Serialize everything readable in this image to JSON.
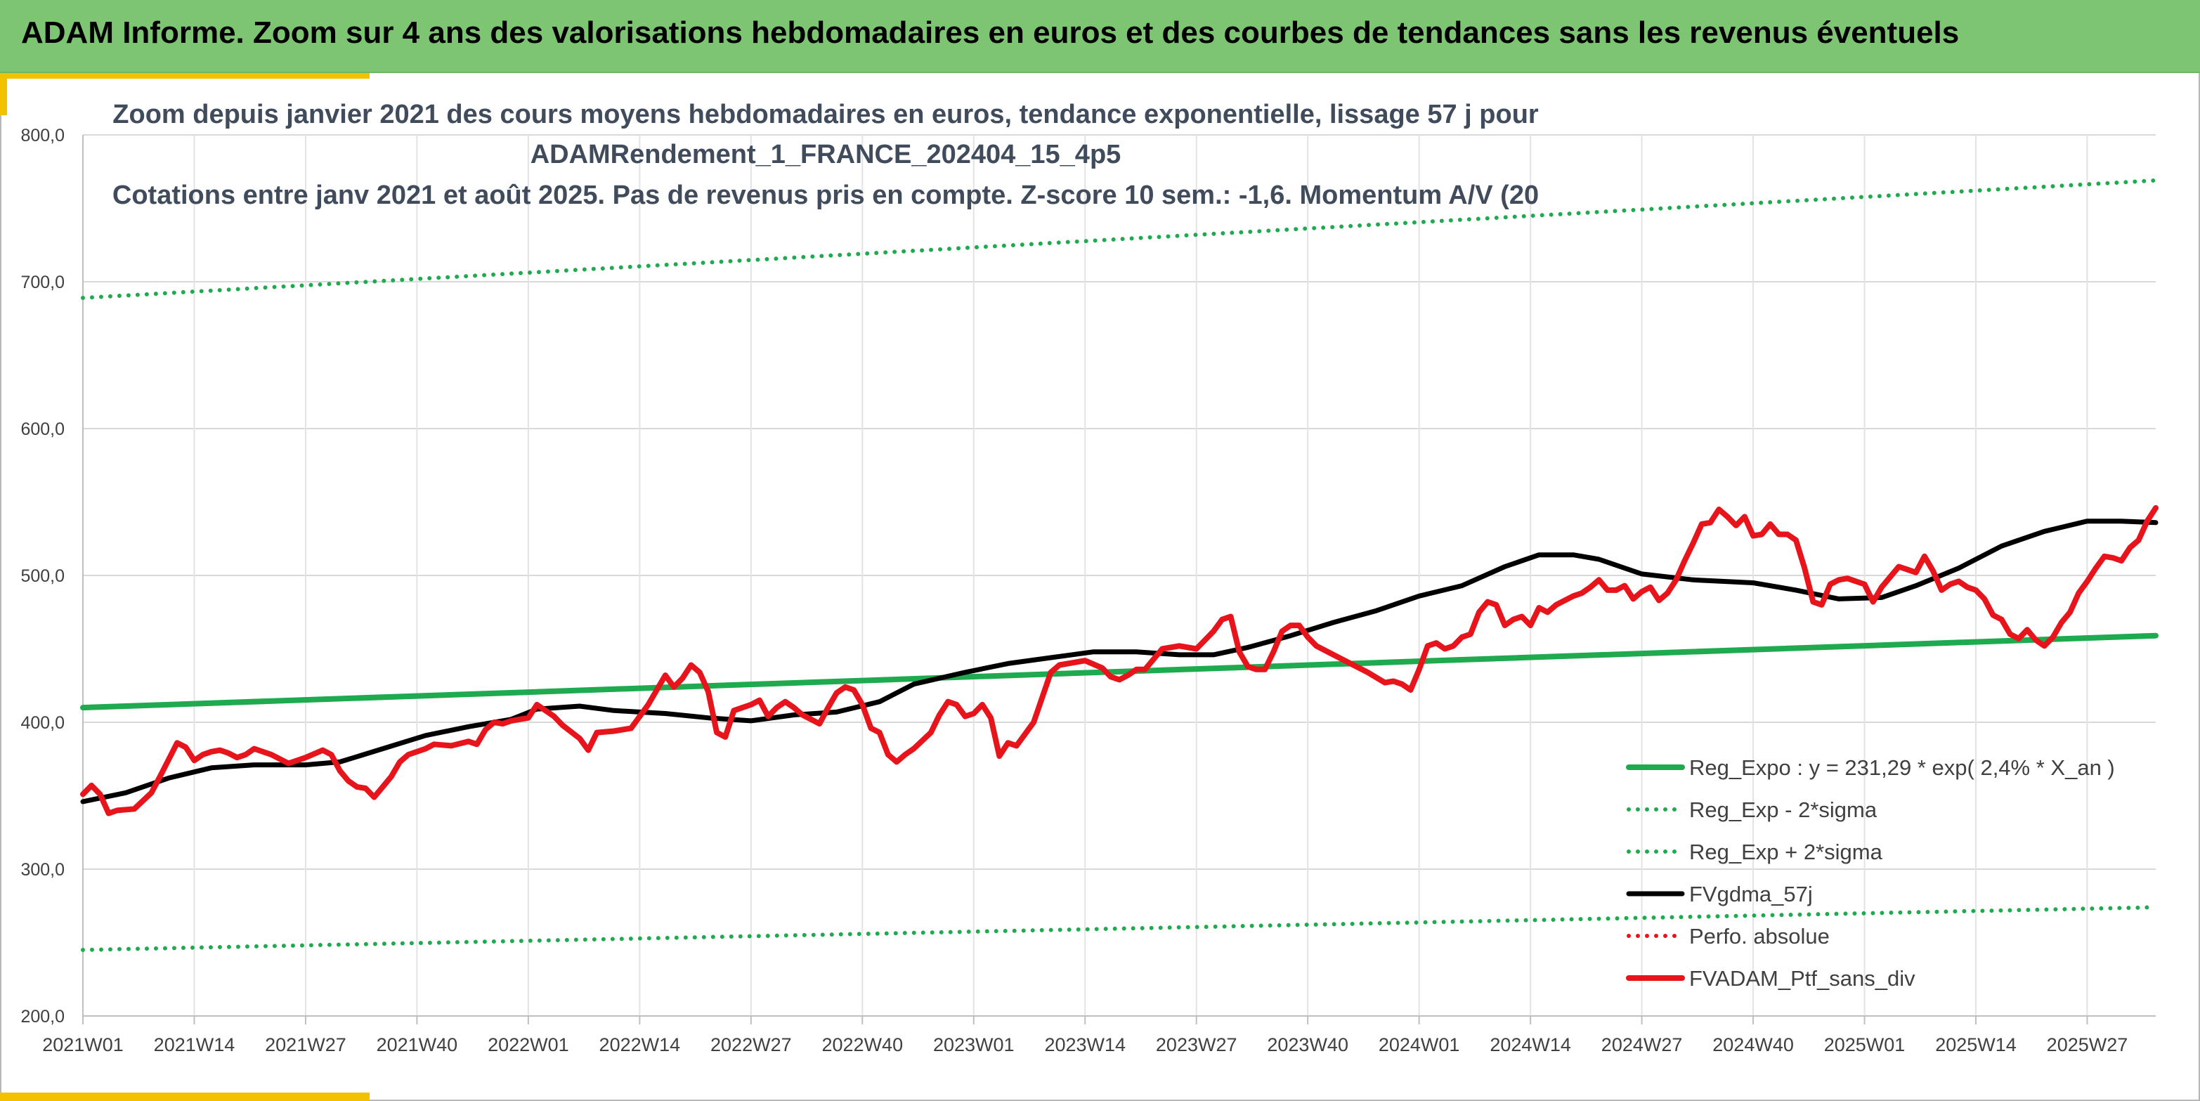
{
  "banner": {
    "title": "ADAM Informe. Zoom sur 4 ans des valorisations hebdomadaires en euros et des courbes de tendances sans les revenus éventuels"
  },
  "colors": {
    "banner": "#7dc473",
    "accent": "#f2c200",
    "trend_green": "#1faa50",
    "portfolio_red": "#e8141b",
    "moving_average": "#000000",
    "title_text": "#404c5c"
  },
  "chart_data": {
    "type": "line",
    "title_lines": [
      "Zoom depuis janvier 2021 des cours moyens hebdomadaires en euros, tendance exponentielle, lissage 57 j pour",
      "ADAMRendement_1_FRANCE_202404_15_4p5",
      "Cotations entre janv 2021 et août 2025. Pas de revenus pris en compte. Z-score 10 sem.: -1,6. Momentum A/V (20"
    ],
    "ylim": [
      200,
      800
    ],
    "y_ticks": [
      "200,0",
      "300,0",
      "400,0",
      "500,0",
      "600,0",
      "700,0",
      "800,0"
    ],
    "x_tick_labels": [
      "2021W01",
      "2021W14",
      "2021W27",
      "2021W40",
      "2022W01",
      "2022W14",
      "2022W27",
      "2022W40",
      "2023W01",
      "2023W14",
      "2023W27",
      "2023W40",
      "2024W01",
      "2024W14",
      "2024W27",
      "2024W40",
      "2025W01",
      "2025W14",
      "2025W27"
    ],
    "x_tick_weeks": [
      0,
      13,
      26,
      39,
      52,
      65,
      78,
      91,
      104,
      117,
      130,
      143,
      156,
      169,
      182,
      195,
      208,
      221,
      234
    ],
    "x_range_weeks": [
      0,
      242
    ],
    "grid": true,
    "legend_position": "bottom-right",
    "series": [
      {
        "name": "Reg_Expo : y = 231,29 * exp( 2,4% *  X_an )",
        "style": "solid-thick",
        "color": "#1faa50",
        "points": [
          [
            0,
            410
          ],
          [
            242,
            459
          ]
        ]
      },
      {
        "name": "Reg_Exp - 2*sigma",
        "style": "dotted",
        "color": "#1faa50",
        "points": [
          [
            0,
            245
          ],
          [
            242,
            274
          ]
        ]
      },
      {
        "name": "Reg_Exp + 2*sigma",
        "style": "dotted",
        "color": "#1faa50",
        "points": [
          [
            0,
            689
          ],
          [
            242,
            769
          ]
        ]
      },
      {
        "name": "FVgdma_57j",
        "style": "solid",
        "color": "#000000",
        "points": [
          [
            0,
            346
          ],
          [
            5,
            352
          ],
          [
            10,
            362
          ],
          [
            15,
            369
          ],
          [
            20,
            371
          ],
          [
            26,
            371
          ],
          [
            30,
            373
          ],
          [
            35,
            382
          ],
          [
            40,
            391
          ],
          [
            45,
            397
          ],
          [
            50,
            402
          ],
          [
            53,
            409
          ],
          [
            58,
            411
          ],
          [
            62,
            408
          ],
          [
            68,
            406
          ],
          [
            73,
            403
          ],
          [
            78,
            401
          ],
          [
            83,
            405
          ],
          [
            88,
            407
          ],
          [
            93,
            414
          ],
          [
            97,
            426
          ],
          [
            103,
            434
          ],
          [
            108,
            440
          ],
          [
            113,
            444
          ],
          [
            118,
            448
          ],
          [
            123,
            448
          ],
          [
            128,
            446
          ],
          [
            132,
            446
          ],
          [
            136,
            451
          ],
          [
            141,
            459
          ],
          [
            146,
            468
          ],
          [
            151,
            476
          ],
          [
            156,
            486
          ],
          [
            161,
            493
          ],
          [
            166,
            506
          ],
          [
            170,
            514
          ],
          [
            174,
            514
          ],
          [
            177,
            511
          ],
          [
            182,
            501
          ],
          [
            188,
            497
          ],
          [
            195,
            495
          ],
          [
            200,
            490
          ],
          [
            205,
            484
          ],
          [
            210,
            485
          ],
          [
            214,
            493
          ],
          [
            219,
            505
          ],
          [
            224,
            520
          ],
          [
            229,
            530
          ],
          [
            234,
            537
          ],
          [
            238,
            537
          ],
          [
            242,
            536
          ]
        ]
      },
      {
        "name": "Perfo. absolue",
        "style": "dotted",
        "color": "#e8141b",
        "points": []
      },
      {
        "name": "FVADAM_Ptf_sans_div",
        "style": "solid-thick",
        "color": "#e8141b",
        "points": [
          [
            0,
            351
          ],
          [
            1,
            357
          ],
          [
            2,
            351
          ],
          [
            3,
            338
          ],
          [
            4,
            340
          ],
          [
            6,
            341
          ],
          [
            8,
            352
          ],
          [
            9,
            363
          ],
          [
            11,
            386
          ],
          [
            12,
            383
          ],
          [
            13,
            374
          ],
          [
            14,
            378
          ],
          [
            15,
            380
          ],
          [
            16,
            381
          ],
          [
            17,
            379
          ],
          [
            18,
            376
          ],
          [
            19,
            378
          ],
          [
            20,
            382
          ],
          [
            22,
            378
          ],
          [
            24,
            372
          ],
          [
            26,
            376
          ],
          [
            28,
            381
          ],
          [
            29,
            378
          ],
          [
            30,
            367
          ],
          [
            31,
            360
          ],
          [
            32,
            356
          ],
          [
            33,
            355
          ],
          [
            34,
            349
          ],
          [
            36,
            363
          ],
          [
            37,
            373
          ],
          [
            38,
            378
          ],
          [
            40,
            382
          ],
          [
            41,
            385
          ],
          [
            43,
            384
          ],
          [
            45,
            387
          ],
          [
            46,
            385
          ],
          [
            47,
            395
          ],
          [
            48,
            400
          ],
          [
            49,
            399
          ],
          [
            50,
            401
          ],
          [
            52,
            403
          ],
          [
            53,
            412
          ],
          [
            55,
            404
          ],
          [
            56,
            398
          ],
          [
            58,
            389
          ],
          [
            59,
            381
          ],
          [
            60,
            393
          ],
          [
            62,
            394
          ],
          [
            64,
            396
          ],
          [
            66,
            412
          ],
          [
            67,
            422
          ],
          [
            68,
            432
          ],
          [
            69,
            424
          ],
          [
            70,
            430
          ],
          [
            71,
            439
          ],
          [
            72,
            434
          ],
          [
            73,
            421
          ],
          [
            74,
            393
          ],
          [
            75,
            390
          ],
          [
            76,
            408
          ],
          [
            78,
            412
          ],
          [
            79,
            415
          ],
          [
            80,
            404
          ],
          [
            81,
            410
          ],
          [
            82,
            414
          ],
          [
            83,
            410
          ],
          [
            84,
            405
          ],
          [
            86,
            399
          ],
          [
            87,
            410
          ],
          [
            88,
            420
          ],
          [
            89,
            424
          ],
          [
            90,
            422
          ],
          [
            91,
            412
          ],
          [
            92,
            396
          ],
          [
            93,
            393
          ],
          [
            94,
            378
          ],
          [
            95,
            373
          ],
          [
            96,
            378
          ],
          [
            97,
            382
          ],
          [
            99,
            393
          ],
          [
            100,
            405
          ],
          [
            101,
            414
          ],
          [
            102,
            412
          ],
          [
            103,
            404
          ],
          [
            104,
            406
          ],
          [
            105,
            412
          ],
          [
            106,
            403
          ],
          [
            107,
            377
          ],
          [
            108,
            386
          ],
          [
            109,
            384
          ],
          [
            111,
            400
          ],
          [
            112,
            417
          ],
          [
            113,
            434
          ],
          [
            114,
            439
          ],
          [
            116,
            441
          ],
          [
            117,
            442
          ],
          [
            119,
            437
          ],
          [
            120,
            431
          ],
          [
            121,
            429
          ],
          [
            122,
            432
          ],
          [
            123,
            436
          ],
          [
            124,
            436
          ],
          [
            126,
            450
          ],
          [
            128,
            452
          ],
          [
            130,
            450
          ],
          [
            132,
            462
          ],
          [
            133,
            470
          ],
          [
            134,
            472
          ],
          [
            135,
            448
          ],
          [
            136,
            438
          ],
          [
            137,
            436
          ],
          [
            138,
            436
          ],
          [
            139,
            448
          ],
          [
            140,
            462
          ],
          [
            141,
            466
          ],
          [
            142,
            466
          ],
          [
            143,
            458
          ],
          [
            144,
            452
          ],
          [
            146,
            446
          ],
          [
            148,
            440
          ],
          [
            150,
            434
          ],
          [
            152,
            427
          ],
          [
            153,
            428
          ],
          [
            154,
            426
          ],
          [
            155,
            422
          ],
          [
            156,
            436
          ],
          [
            157,
            452
          ],
          [
            158,
            454
          ],
          [
            159,
            450
          ],
          [
            160,
            452
          ],
          [
            161,
            458
          ],
          [
            162,
            460
          ],
          [
            163,
            475
          ],
          [
            164,
            482
          ],
          [
            165,
            480
          ],
          [
            166,
            466
          ],
          [
            167,
            470
          ],
          [
            168,
            472
          ],
          [
            169,
            466
          ],
          [
            170,
            478
          ],
          [
            171,
            475
          ],
          [
            172,
            480
          ],
          [
            174,
            486
          ],
          [
            175,
            488
          ],
          [
            176,
            492
          ],
          [
            177,
            497
          ],
          [
            178,
            490
          ],
          [
            179,
            490
          ],
          [
            180,
            493
          ],
          [
            181,
            484
          ],
          [
            182,
            489
          ],
          [
            183,
            492
          ],
          [
            184,
            483
          ],
          [
            185,
            488
          ],
          [
            186,
            497
          ],
          [
            187,
            510
          ],
          [
            188,
            522
          ],
          [
            189,
            535
          ],
          [
            190,
            536
          ],
          [
            191,
            545
          ],
          [
            192,
            540
          ],
          [
            193,
            534
          ],
          [
            194,
            540
          ],
          [
            195,
            527
          ],
          [
            196,
            528
          ],
          [
            197,
            535
          ],
          [
            198,
            528
          ],
          [
            199,
            528
          ],
          [
            200,
            524
          ],
          [
            201,
            505
          ],
          [
            202,
            482
          ],
          [
            203,
            480
          ],
          [
            204,
            494
          ],
          [
            205,
            497
          ],
          [
            206,
            498
          ],
          [
            207,
            496
          ],
          [
            208,
            494
          ],
          [
            209,
            482
          ],
          [
            210,
            492
          ],
          [
            212,
            506
          ],
          [
            213,
            504
          ],
          [
            214,
            502
          ],
          [
            215,
            513
          ],
          [
            216,
            503
          ],
          [
            217,
            490
          ],
          [
            218,
            494
          ],
          [
            219,
            496
          ],
          [
            220,
            492
          ],
          [
            221,
            490
          ],
          [
            222,
            484
          ],
          [
            223,
            473
          ],
          [
            224,
            470
          ],
          [
            225,
            460
          ],
          [
            226,
            457
          ],
          [
            227,
            463
          ],
          [
            228,
            456
          ],
          [
            229,
            452
          ],
          [
            230,
            458
          ],
          [
            231,
            468
          ],
          [
            232,
            475
          ],
          [
            233,
            488
          ],
          [
            234,
            496
          ],
          [
            235,
            505
          ],
          [
            236,
            513
          ],
          [
            237,
            512
          ],
          [
            238,
            510
          ],
          [
            239,
            519
          ],
          [
            240,
            524
          ],
          [
            241,
            537
          ],
          [
            242,
            546
          ]
        ]
      }
    ]
  }
}
